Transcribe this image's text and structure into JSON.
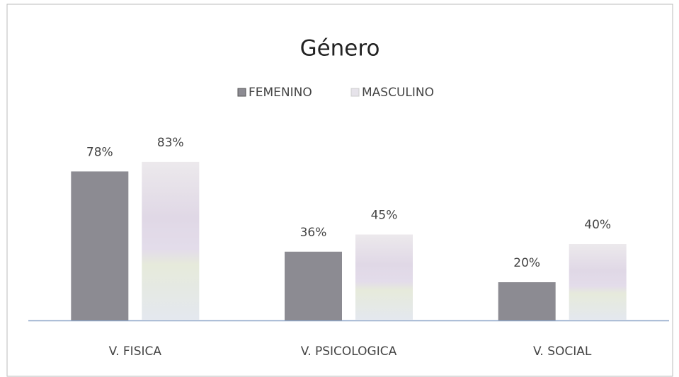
{
  "chart_data": {
    "type": "bar",
    "title": "Género",
    "categories": [
      "V. FISICA",
      "V. PSICOLOGICA",
      "V. SOCIAL"
    ],
    "series": [
      {
        "name": "FEMENINO",
        "color": "#8c8b92",
        "values": [
          78,
          36,
          20
        ],
        "value_labels": [
          "78%",
          "36%",
          "20%"
        ]
      },
      {
        "name": "MASCULINO",
        "color": "#e6e3ea",
        "values": [
          83,
          45,
          40
        ],
        "value_labels": [
          "83%",
          "45%",
          "40%"
        ]
      }
    ]
  }
}
